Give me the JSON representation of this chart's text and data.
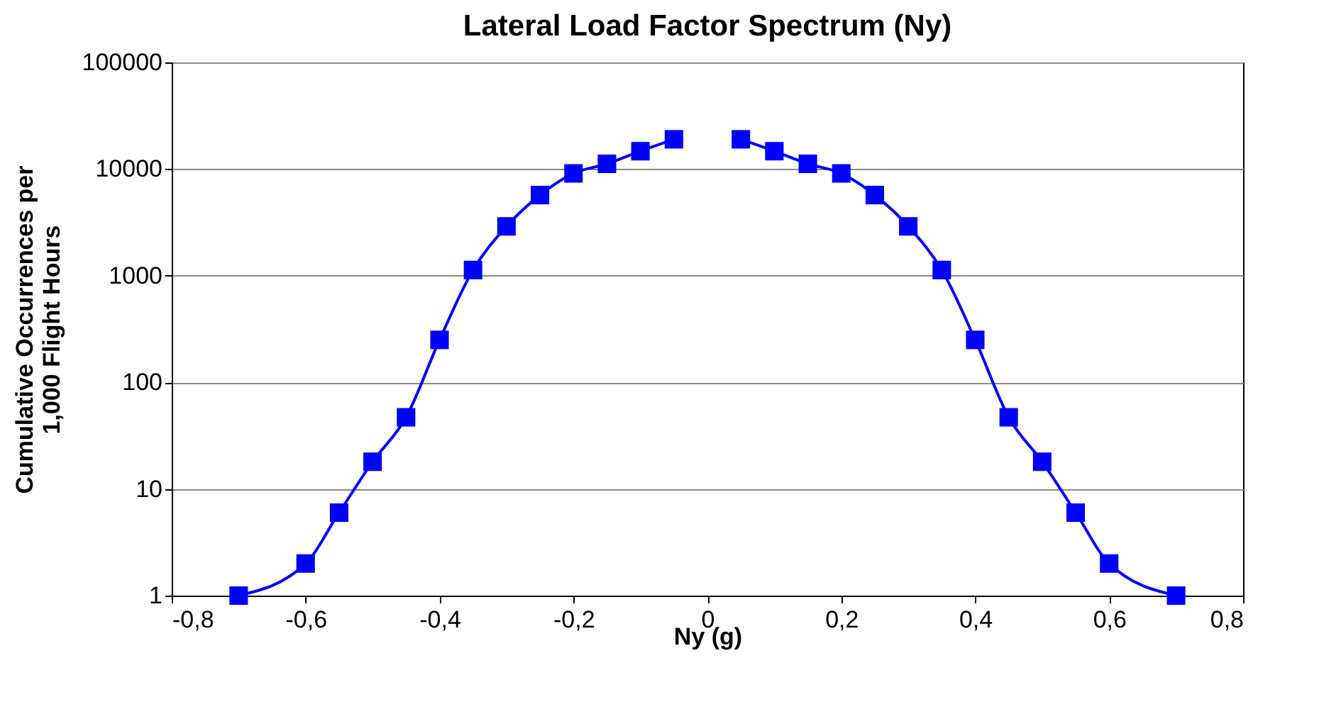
{
  "chart_data": {
    "type": "line",
    "title": "Lateral Load Factor Spectrum (Ny)",
    "xlabel": "Ny (g)",
    "ylabel": "Cumulative Occurrences per 1,000 Flight Hours",
    "x": [
      -0.7,
      -0.6,
      -0.55,
      -0.5,
      -0.45,
      -0.4,
      -0.35,
      -0.3,
      -0.25,
      -0.2,
      -0.15,
      -0.1,
      -0.05,
      0,
      0.05,
      0.1,
      0.15,
      0.2,
      0.25,
      0.3,
      0.35,
      0.4,
      0.45,
      0.5,
      0.55,
      0.6,
      0.7
    ],
    "series": [
      {
        "color": "#0000ff",
        "values": [
          1,
          2,
          6,
          18,
          47,
          250,
          1130,
          2900,
          5700,
          9100,
          11200,
          14700,
          19000,
          null,
          19000,
          14700,
          11200,
          9100,
          5700,
          2900,
          1130,
          250,
          47,
          18,
          6,
          2,
          1
        ]
      }
    ],
    "log": "y",
    "xlim": [
      -0.8,
      0.8
    ],
    "ylim": [
      1,
      100000
    ],
    "xticks": [
      {
        "value": -0.8,
        "label": "-0,8"
      },
      {
        "value": -0.6,
        "label": "-0,6"
      },
      {
        "value": -0.4,
        "label": "-0,4"
      },
      {
        "value": -0.2,
        "label": "-0,2"
      },
      0,
      {
        "value": 0.2,
        "label": "0,2"
      },
      {
        "value": 0.4,
        "label": "0,4"
      },
      {
        "value": 0.6,
        "label": "0,6"
      },
      {
        "value": 0.8,
        "label": "0,8"
      }
    ],
    "yticks": [
      1,
      10,
      100,
      1000,
      10000,
      100000
    ],
    "grid": "y",
    "legend": false,
    "marker": "square",
    "line_style": "solid"
  }
}
